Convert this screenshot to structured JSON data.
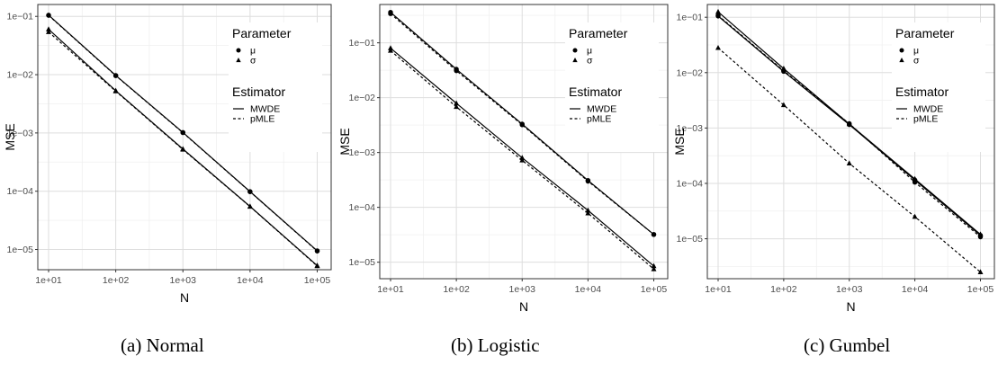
{
  "charts": [
    {
      "caption": "(a) Normal"
    },
    {
      "caption": "(b) Logistic"
    },
    {
      "caption": "(c) Gumbel"
    }
  ],
  "chart_data": [
    {
      "type": "line",
      "title": "",
      "xlabel": "N",
      "ylabel": "MSE",
      "scale": "log-log",
      "grid": true,
      "x": [
        10,
        100,
        1000,
        10000,
        100000
      ],
      "xticks": [
        "1e+01",
        "1e+02",
        "1e+03",
        "1e+04",
        "1e+05"
      ],
      "yticks": [
        "1e−05",
        "1e−04",
        "1e−03",
        "1e−02",
        "1e−01"
      ],
      "ytick_values": [
        1e-05,
        0.0001,
        0.001,
        0.01,
        0.1
      ],
      "ylim": [
        4.5e-06,
        0.16
      ],
      "legend_placement": "top-right",
      "legend": {
        "parameter_title": "Parameter",
        "parameter_items": [
          {
            "label": "μ",
            "marker": "circle"
          },
          {
            "label": "σ",
            "marker": "triangle"
          }
        ],
        "estimator_title": "Estimator",
        "estimator_items": [
          {
            "label": "MWDE",
            "linestyle": "solid"
          },
          {
            "label": "pMLE",
            "linestyle": "dashed"
          }
        ]
      },
      "series": [
        {
          "parameter": "μ",
          "estimator": "MWDE",
          "marker": "circle",
          "linestyle": "solid",
          "values": [
            0.105,
            0.0097,
            0.00102,
            9.85e-05,
            9.5e-06
          ]
        },
        {
          "parameter": "μ",
          "estimator": "pMLE",
          "marker": "circle",
          "linestyle": "dashed",
          "values": [
            0.104,
            0.0096,
            0.00101,
            9.8e-05,
            9.4e-06
          ]
        },
        {
          "parameter": "σ",
          "estimator": "MWDE",
          "marker": "triangle",
          "linestyle": "solid",
          "values": [
            0.06,
            0.0053,
            0.00053,
            5.48e-05,
            5.3e-06
          ]
        },
        {
          "parameter": "σ",
          "estimator": "pMLE",
          "marker": "triangle",
          "linestyle": "dashed",
          "values": [
            0.054,
            0.0052,
            0.00052,
            5.45e-05,
            5.2e-06
          ]
        }
      ]
    },
    {
      "type": "line",
      "title": "",
      "xlabel": "N",
      "ylabel": "MSE",
      "scale": "log-log",
      "grid": true,
      "x": [
        10,
        100,
        1000,
        10000,
        100000
      ],
      "xticks": [
        "1e+01",
        "1e+02",
        "1e+03",
        "1e+04",
        "1e+05"
      ],
      "yticks": [
        "1e−05",
        "1e−04",
        "1e−03",
        "1e−02",
        "1e−01"
      ],
      "ytick_values": [
        1e-05,
        0.0001,
        0.001,
        0.01,
        0.1
      ],
      "ylim": [
        5e-06,
        0.5
      ],
      "legend_placement": "top-right",
      "legend": {
        "parameter_title": "Parameter",
        "parameter_items": [
          {
            "label": "μ",
            "marker": "circle"
          },
          {
            "label": "σ",
            "marker": "triangle"
          }
        ],
        "estimator_title": "Estimator",
        "estimator_items": [
          {
            "label": "MWDE",
            "linestyle": "solid"
          },
          {
            "label": "pMLE",
            "linestyle": "dashed"
          }
        ]
      },
      "series": [
        {
          "parameter": "μ",
          "estimator": "MWDE",
          "marker": "circle",
          "linestyle": "solid",
          "values": [
            0.36,
            0.033,
            0.0033,
            0.00031,
            3.2e-05
          ]
        },
        {
          "parameter": "μ",
          "estimator": "pMLE",
          "marker": "circle",
          "linestyle": "dashed",
          "values": [
            0.34,
            0.031,
            0.0032,
            0.0003,
            3.2e-05
          ]
        },
        {
          "parameter": "σ",
          "estimator": "MWDE",
          "marker": "triangle",
          "linestyle": "solid",
          "values": [
            0.08,
            0.0079,
            0.0008,
            8.8e-05,
            8.5e-06
          ]
        },
        {
          "parameter": "σ",
          "estimator": "pMLE",
          "marker": "triangle",
          "linestyle": "dashed",
          "values": [
            0.072,
            0.0068,
            0.00072,
            7.8e-05,
            7.5e-06
          ]
        }
      ]
    },
    {
      "type": "line",
      "title": "",
      "xlabel": "N",
      "ylabel": "MSE",
      "scale": "log-log",
      "grid": true,
      "x": [
        10,
        100,
        1000,
        10000,
        100000
      ],
      "xticks": [
        "1e+01",
        "1e+02",
        "1e+03",
        "1e+04",
        "1e+05"
      ],
      "yticks": [
        "1e−05",
        "1e−04",
        "1e−03",
        "1e−02",
        "1e−01"
      ],
      "ytick_values": [
        1e-05,
        0.0001,
        0.001,
        0.01,
        0.1
      ],
      "ylim": [
        1.9e-06,
        0.17
      ],
      "legend_placement": "top-right",
      "legend": {
        "parameter_title": "Parameter",
        "parameter_items": [
          {
            "label": "μ",
            "marker": "circle"
          },
          {
            "label": "σ",
            "marker": "triangle"
          }
        ],
        "estimator_title": "Estimator",
        "estimator_items": [
          {
            "label": "MWDE",
            "linestyle": "solid"
          },
          {
            "label": "pMLE",
            "linestyle": "dashed"
          }
        ]
      },
      "series": [
        {
          "parameter": "μ",
          "estimator": "MWDE",
          "marker": "circle",
          "linestyle": "solid",
          "values": [
            0.105,
            0.0105,
            0.00115,
            0.000115,
            1.15e-05
          ]
        },
        {
          "parameter": "μ",
          "estimator": "pMLE",
          "marker": "circle",
          "linestyle": "dashed",
          "values": [
            0.108,
            0.0108,
            0.0012,
            0.000105,
            1.08e-05
          ]
        },
        {
          "parameter": "σ",
          "estimator": "MWDE",
          "marker": "triangle",
          "linestyle": "solid",
          "values": [
            0.125,
            0.0118,
            0.00118,
            0.00012,
            1.2e-05
          ]
        },
        {
          "parameter": "σ",
          "estimator": "pMLE",
          "marker": "triangle",
          "linestyle": "dashed",
          "values": [
            0.028,
            0.0026,
            0.00023,
            2.5e-05,
            2.5e-06
          ]
        }
      ]
    }
  ]
}
